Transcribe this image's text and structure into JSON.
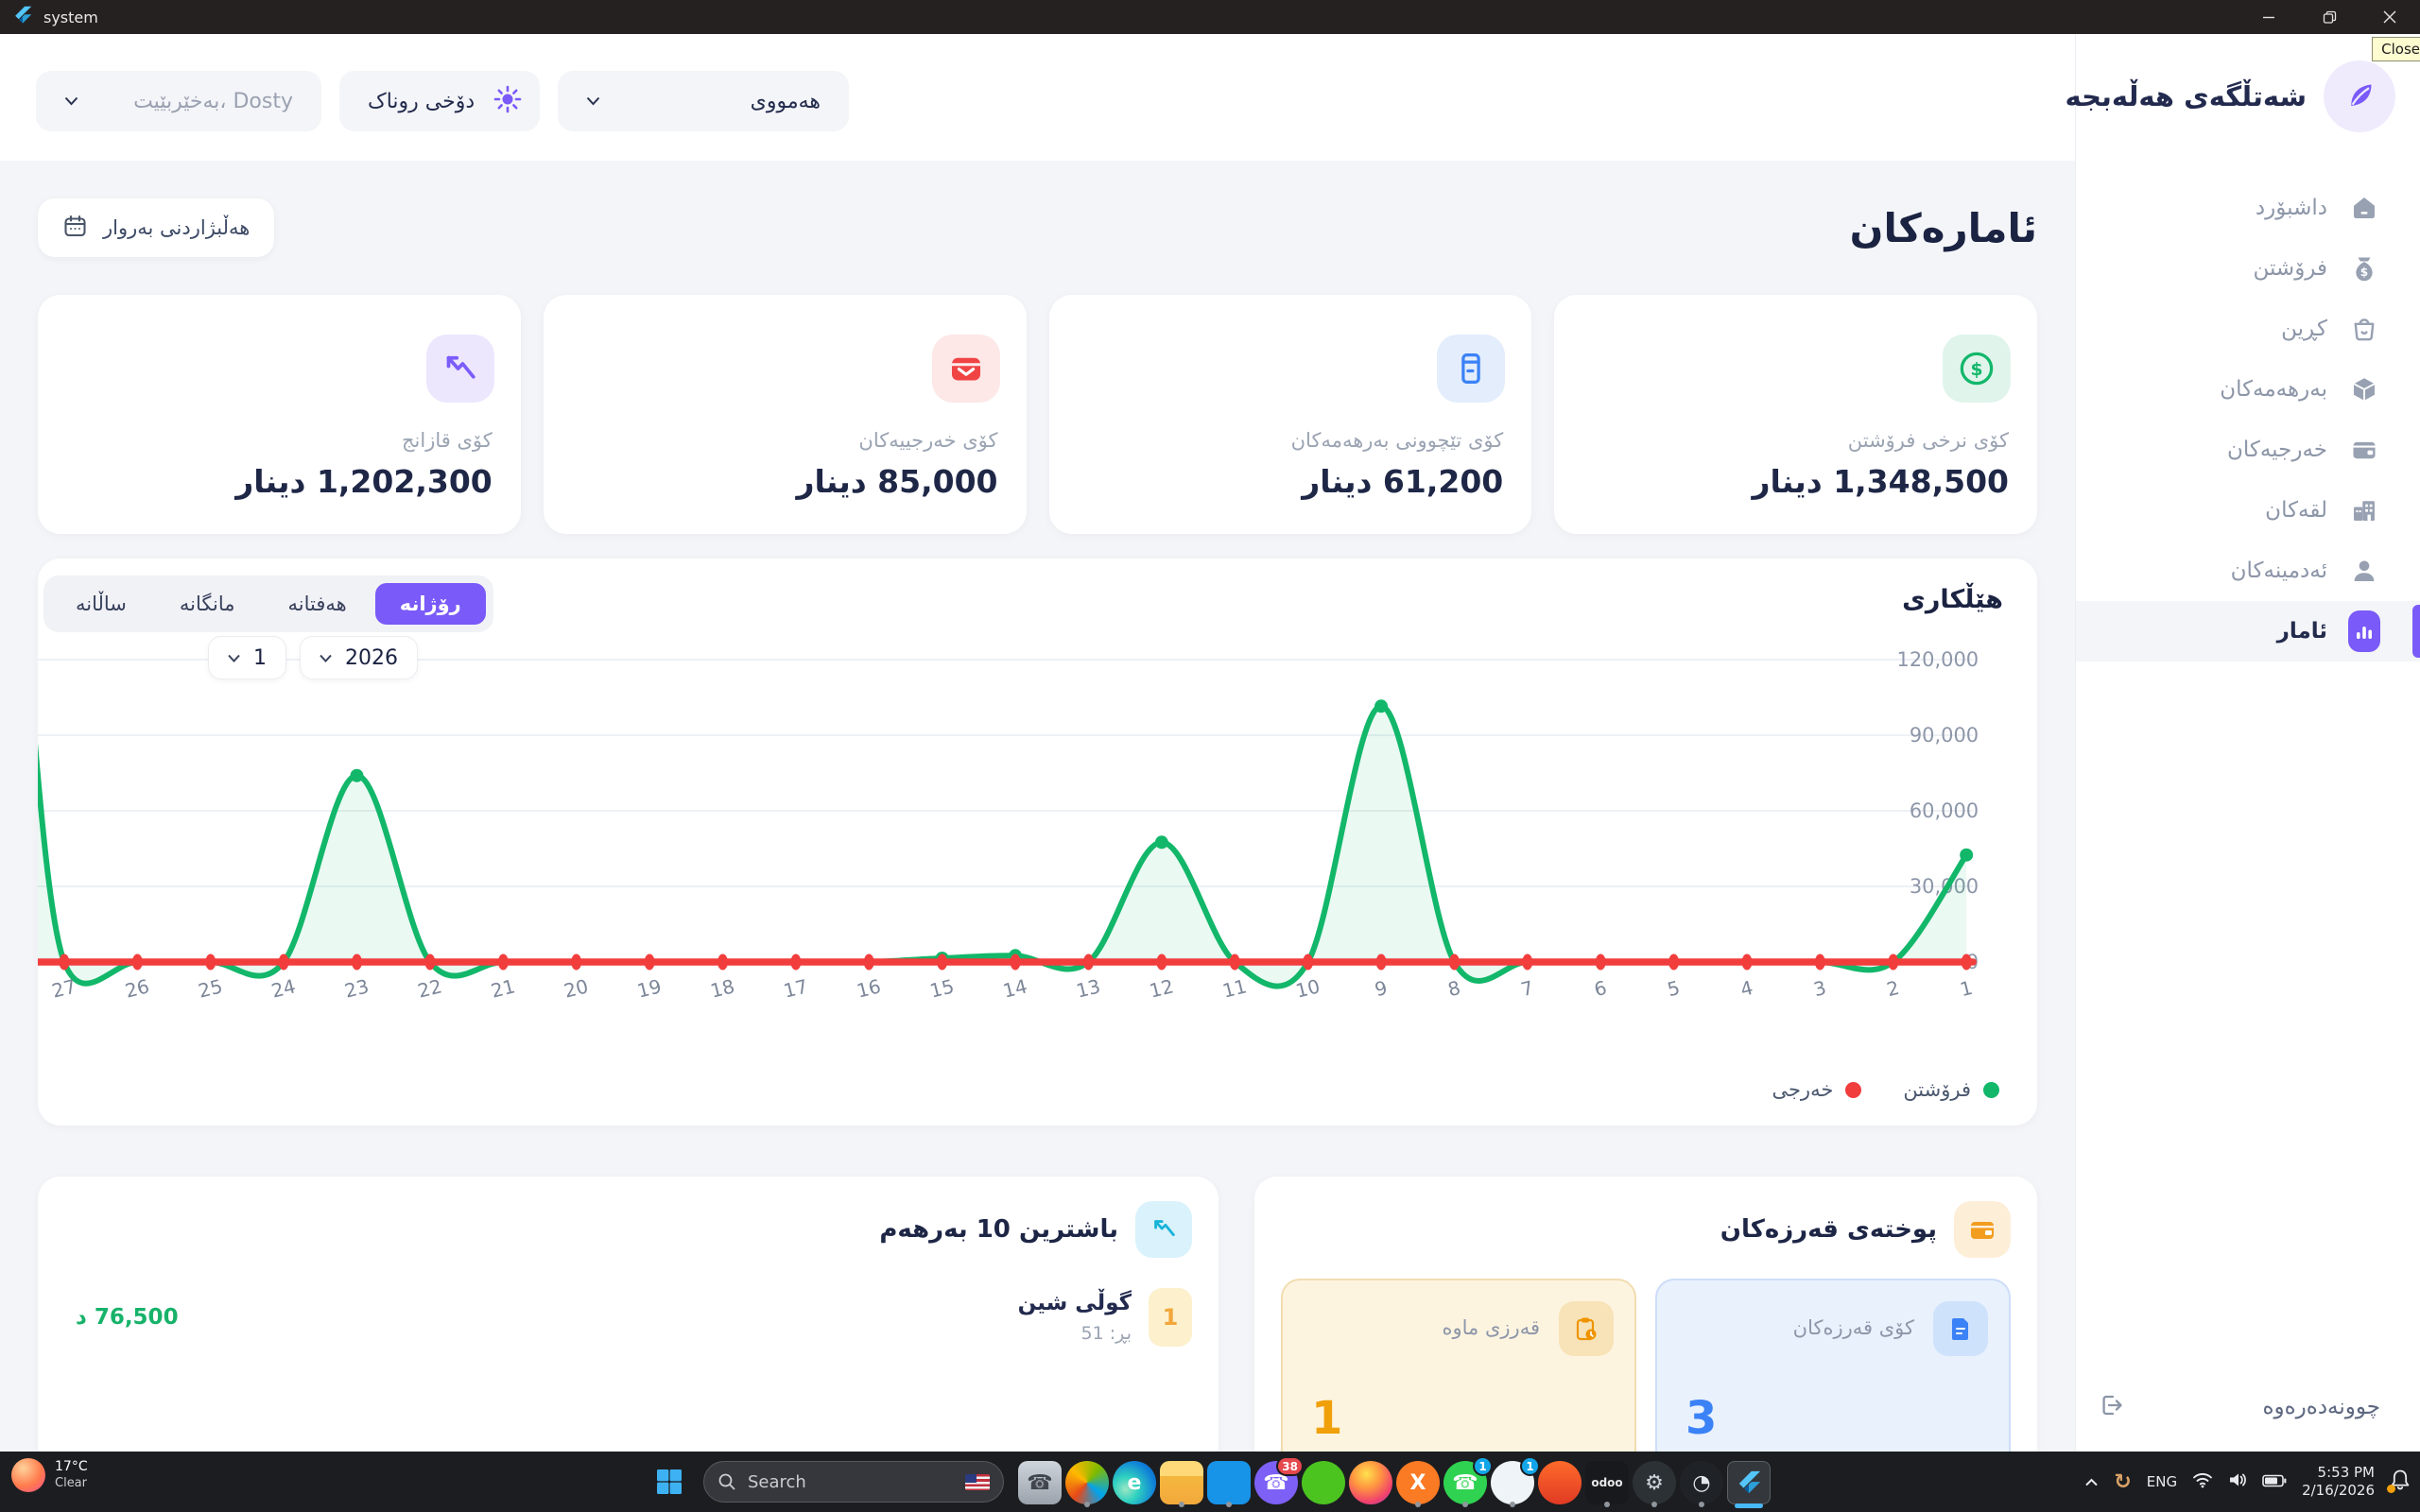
{
  "window": {
    "title": "system",
    "close_tooltip": "Close"
  },
  "header": {
    "brand": "شەتڵگەی هەڵەبجە",
    "filter_dropdown": "هەمووی",
    "theme_button": "دۆخی روناک",
    "welcome_dropdown": "بەخێربێیت، Dosty"
  },
  "sidebar": {
    "items": [
      {
        "label": "داشبۆرد",
        "icon": "home",
        "active": false
      },
      {
        "label": "فرۆشتن",
        "icon": "sales",
        "active": false
      },
      {
        "label": "کڕین",
        "icon": "buy",
        "active": false
      },
      {
        "label": "بەرهەمەکان",
        "icon": "products",
        "active": false
      },
      {
        "label": "خەرجیەکان",
        "icon": "expenses",
        "active": false
      },
      {
        "label": "لقەکان",
        "icon": "branches",
        "active": false
      },
      {
        "label": "ئەدمینەکان",
        "icon": "admins",
        "active": false
      },
      {
        "label": "ئامار",
        "icon": "stats",
        "active": true
      }
    ],
    "logout_label": "چوونەدەرەوە"
  },
  "page": {
    "title": "ئامارەکان",
    "date_button": "هەڵبژاردنی بەروار"
  },
  "stats": [
    {
      "label": "کۆی نرخی فرۆشتن",
      "value": "1,348,500 دینار",
      "icon": "dollar",
      "icon_bg": "#e0f4eb",
      "accent": "#12b76a"
    },
    {
      "label": "کۆی تێچوونی بەرهەمەکان",
      "value": "61,200 دینار",
      "icon": "jar",
      "icon_bg": "#e3edfc",
      "accent": "#3b82f6"
    },
    {
      "label": "کۆی خەرجییەکان",
      "value": "85,000 دینار",
      "icon": "wallet",
      "icon_bg": "#fde7e7",
      "accent": "#f04444"
    },
    {
      "label": "کۆی قازانج",
      "value": "1,202,300 دینار",
      "icon": "trend",
      "icon_bg": "#ece7fd",
      "accent": "#7c5cfa"
    }
  ],
  "chart": {
    "title": "هێڵکاری",
    "tabs": [
      {
        "label": "رۆژانە",
        "active": true
      },
      {
        "label": "هەفتانە",
        "active": false
      },
      {
        "label": "مانگانە",
        "active": false
      },
      {
        "label": "ساڵانە",
        "active": false
      }
    ],
    "month_select": "1",
    "year_select": "2026",
    "legend": [
      {
        "label": "فرۆشتن",
        "color": "#12b76a"
      },
      {
        "label": "خەرجی",
        "color": "#f23d3d"
      }
    ]
  },
  "chart_data": {
    "type": "line",
    "title": "هێڵکاری",
    "x_note": "days of month, RTL axis: 27 at left edge through 1 at right edge",
    "categories": [
      "27",
      "26",
      "25",
      "24",
      "23",
      "22",
      "21",
      "20",
      "19",
      "18",
      "17",
      "16",
      "15",
      "14",
      "13",
      "12",
      "11",
      "10",
      "9",
      "8",
      "7",
      "6",
      "5",
      "4",
      "3",
      "2",
      "1"
    ],
    "series": [
      {
        "name": "فرۆشتن",
        "color": "#12b76a",
        "values": [
          0,
          0,
          0,
          0,
          74000,
          0,
          0,
          0,
          0,
          0,
          0,
          0,
          1500,
          2500,
          0,
          47500,
          0,
          0,
          101500,
          0,
          0,
          0,
          0,
          0,
          0,
          0,
          42500
        ],
        "edge_entry_value": 115000
      },
      {
        "name": "خەرجی",
        "color": "#f23d3d",
        "values": [
          0,
          0,
          0,
          0,
          0,
          0,
          0,
          0,
          0,
          0,
          0,
          0,
          0,
          0,
          0,
          0,
          0,
          0,
          0,
          0,
          0,
          0,
          0,
          0,
          0,
          0,
          0
        ]
      }
    ],
    "ylim": [
      0,
      120000
    ],
    "yticks": [
      "0",
      "30,000",
      "60,000",
      "90,000",
      "120,000"
    ],
    "grid": true,
    "legend_position": "bottom-right"
  },
  "top_products": {
    "title": "باشترین 10 بەرهەم",
    "items": [
      {
        "rank": "1",
        "name": "گوڵی شین",
        "qty": "بڕ: 51",
        "price": "76,500 د"
      }
    ]
  },
  "debts": {
    "title": "پوختەی قەرزەکان",
    "cards": [
      {
        "label": "کۆی قەرزەکان",
        "value": "3",
        "theme": "blue"
      },
      {
        "label": "قەرزی ماوە",
        "value": "1",
        "theme": "amber"
      }
    ]
  },
  "taskbar": {
    "weather": {
      "temp": "17°C",
      "condition": "Clear"
    },
    "search_placeholder": "Search",
    "language": "ENG",
    "time": "5:53 PM",
    "date": "2/16/2026",
    "apps": [
      {
        "name": "phone-link",
        "shape": "square",
        "bg": "linear-gradient(180deg,#cfd5dd,#9aa2ab)",
        "glyph": "☎",
        "fg": "#41464d",
        "running": false
      },
      {
        "name": "office",
        "shape": "circle",
        "bg": "conic-gradient(from 220deg,#e64a19,#ffb900,#7fba00,#00a4ef,#e64a19)",
        "glyph": "",
        "fg": "#fff",
        "running": true
      },
      {
        "name": "edge",
        "shape": "circle",
        "bg": "radial-gradient(circle at 30% 65%,#9ce6c3 0%,#2fd1c0 30%,#0f7fd9 70%,#0a57a8 100%)",
        "glyph": "e",
        "fg": "#ffffff",
        "running": false
      },
      {
        "name": "file-explorer",
        "shape": "square",
        "bg": "linear-gradient(180deg,#ffd977 0%,#ffd977 35%,#f5b73e 35%,#f2a93c 100%)",
        "glyph": "",
        "fg": "#fff",
        "running": true
      },
      {
        "name": "vscode",
        "shape": "square",
        "bg": "#1793e8",
        "glyph": "</>",
        "fg": "#ffffff",
        "small": true,
        "running": true
      },
      {
        "name": "viber",
        "shape": "circle",
        "bg": "#7d60f5",
        "glyph": "☎",
        "fg": "#ffffff",
        "badge": {
          "text": "38",
          "bg": "#e5484d"
        },
        "running": false
      },
      {
        "name": "messenger-green",
        "shape": "circle",
        "bg": "#4cc420",
        "glyph": "",
        "fg": "#fff",
        "running": false
      },
      {
        "name": "firefox",
        "shape": "circle",
        "bg": "radial-gradient(circle at 40% 30%,#ffe14d 0%,#ff9640 35%,#f0416d 70%,#8b45c6 100%)",
        "glyph": "",
        "fg": "#fff",
        "running": false
      },
      {
        "name": "xampp",
        "shape": "circle",
        "bg": "#fb7a24",
        "glyph": "X",
        "fg": "#ffffff",
        "running": true
      },
      {
        "name": "whatsapp",
        "shape": "circle",
        "bg": "#2fd351",
        "glyph": "☎",
        "fg": "#ffffff",
        "badge": {
          "text": "1",
          "bg": "#12a6e8"
        },
        "running": true
      },
      {
        "name": "cyberduck",
        "shape": "circle",
        "bg": "#eef4f8",
        "glyph": "",
        "fg": "#f2a63b",
        "badge": {
          "text": "1",
          "bg": "#12a6e8"
        },
        "running": true
      },
      {
        "name": "brave",
        "shape": "circle",
        "bg": "linear-gradient(180deg,#ff6a2a,#e03a24)",
        "glyph": "",
        "fg": "#fff",
        "running": false
      },
      {
        "name": "odoo",
        "shape": "square",
        "bg": "#17191c",
        "glyph": "odoo",
        "fg": "#e8e8e8",
        "small": true,
        "running": true
      },
      {
        "name": "settings-gear",
        "shape": "circle",
        "bg": "#2c3136",
        "glyph": "⚙",
        "fg": "#cdd3da",
        "running": true
      },
      {
        "name": "clock-app",
        "shape": "circle",
        "bg": "#1f2327",
        "glyph": "◔",
        "fg": "#e3e8ee",
        "running": true
      },
      {
        "name": "flutter-app",
        "shape": "flutter",
        "active": true
      }
    ]
  }
}
